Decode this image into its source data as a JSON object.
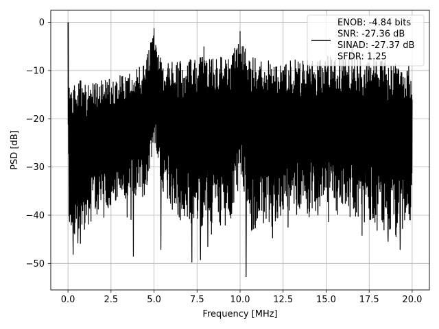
{
  "chart_data": {
    "type": "line",
    "title": "",
    "xlabel": "Frequency [MHz]",
    "ylabel": "PSD [dB]",
    "xlim": [
      -1.0,
      21.0
    ],
    "ylim": [
      -55.5,
      2.5
    ],
    "xticks": [
      0.0,
      2.5,
      5.0,
      7.5,
      10.0,
      12.5,
      15.0,
      17.5,
      20.0
    ],
    "xtick_labels": [
      "0.0",
      "2.5",
      "5.0",
      "7.5",
      "10.0",
      "12.5",
      "15.0",
      "17.5",
      "20.0"
    ],
    "yticks": [
      0,
      -10,
      -20,
      -30,
      -40,
      -50
    ],
    "ytick_labels": [
      "0",
      "−10",
      "−20",
      "−30",
      "−40",
      "−50"
    ],
    "grid": true,
    "legend_position": "top-right",
    "legend_lines": [
      "ENOB: -4.84 bits",
      "SNR: -27.36 dB",
      "SINAD: -27.37 dB",
      "SFDR: 1.25"
    ],
    "series": [
      {
        "color": "#000000",
        "x_range": [
          0.0,
          20.0
        ],
        "description_points": {
          "x": [
            0.0,
            0.05,
            0.5,
            1.0,
            2.0,
            3.0,
            4.5,
            5.0,
            5.5,
            6.5,
            7.5,
            9.5,
            10.0,
            10.5,
            12.5,
            15.0,
            17.5,
            19.0,
            20.0
          ],
          "upper_envelope": [
            0.0,
            -12,
            -12,
            -12,
            -12,
            -11,
            -8,
            -2,
            -8,
            -8,
            -7,
            -6,
            -3,
            -7,
            -8,
            -7,
            -7,
            -8,
            -9
          ],
          "lower_envelope": [
            -10,
            -44,
            -44,
            -43,
            -39,
            -38,
            -36,
            -25,
            -35,
            -42,
            -43,
            -42,
            -30,
            -44,
            -40,
            -40,
            -41,
            -45,
            -41
          ],
          "min_spikes": [
            {
              "x": 0.3,
              "y": -48.2
            },
            {
              "x": 3.8,
              "y": -48.6
            },
            {
              "x": 5.4,
              "y": -47.2
            },
            {
              "x": 7.2,
              "y": -49.8
            },
            {
              "x": 7.7,
              "y": -49.3
            },
            {
              "x": 10.35,
              "y": -52.8
            },
            {
              "x": 18.6,
              "y": -45.5
            },
            {
              "x": 19.3,
              "y": -47.2
            }
          ],
          "max_spikes": [
            {
              "x": 0.02,
              "y": 0.0
            },
            {
              "x": 5.0,
              "y": -1.2
            },
            {
              "x": 4.8,
              "y": -4.2
            },
            {
              "x": 10.0,
              "y": -1.8
            },
            {
              "x": 7.9,
              "y": -5.0
            },
            {
              "x": 16.5,
              "y": -5.5
            }
          ]
        }
      }
    ]
  }
}
